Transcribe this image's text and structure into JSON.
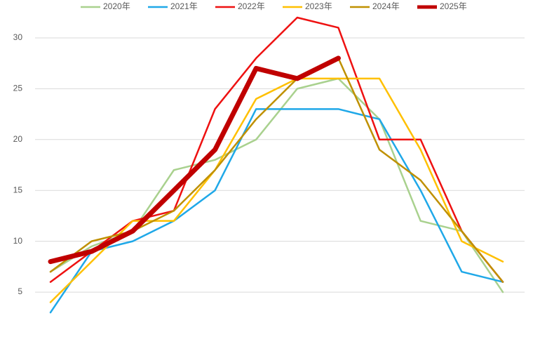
{
  "chart_data": {
    "type": "line",
    "categories": [
      null,
      null,
      null,
      null,
      null,
      null,
      null,
      null,
      null,
      null,
      null,
      null
    ],
    "series": [
      {
        "name": "2020年",
        "color": "#a9d18e",
        "width": 2.5,
        "values": [
          7,
          9.5,
          11,
          17,
          18,
          20,
          25,
          26,
          22,
          12,
          11,
          5
        ]
      },
      {
        "name": "2021年",
        "color": "#1fa8e8",
        "width": 2.5,
        "values": [
          3,
          9,
          10,
          12,
          15,
          23,
          23,
          23,
          22,
          15,
          7,
          6
        ]
      },
      {
        "name": "2022年",
        "color": "#ee1111",
        "width": 2.5,
        "values": [
          6,
          9,
          12,
          13,
          23,
          28,
          32,
          31,
          20,
          20,
          11,
          6
        ]
      },
      {
        "name": "2023年",
        "color": "#ffc000",
        "width": 2.5,
        "values": [
          4,
          8,
          12,
          12,
          17,
          24,
          26,
          26,
          26,
          19,
          10,
          8
        ]
      },
      {
        "name": "2024年",
        "color": "#bf9000",
        "width": 2.5,
        "values": [
          7,
          10,
          11,
          13,
          17,
          22,
          26,
          28,
          19,
          16,
          11,
          6
        ]
      },
      {
        "name": "2025年",
        "color": "#c00000",
        "width": 7,
        "values": [
          8,
          9,
          11,
          15,
          19,
          27,
          26,
          28,
          null,
          null,
          null,
          null
        ]
      }
    ],
    "ylim": [
      1,
      33
    ],
    "yticks": [
      5,
      10,
      15,
      20,
      25,
      30
    ],
    "grid": true,
    "legend": "top"
  }
}
